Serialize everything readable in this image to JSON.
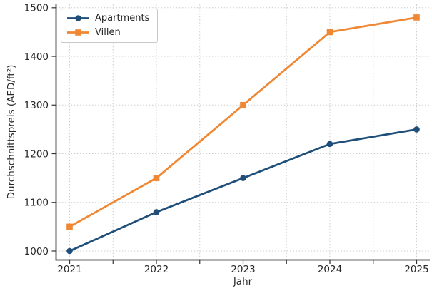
{
  "figure": {
    "background": "#ffffff"
  },
  "chart_data": {
    "type": "line",
    "x": [
      2021,
      2022,
      2023,
      2024,
      2025
    ],
    "series": [
      {
        "name": "Apartments",
        "values": [
          1000,
          1080,
          1150,
          1220,
          1250
        ],
        "color": "#1f4e79",
        "marker": "circle"
      },
      {
        "name": "Villen",
        "values": [
          1050,
          1150,
          1300,
          1450,
          1480
        ],
        "color": "#ef8733",
        "marker": "square"
      }
    ],
    "title": "",
    "xlabel": "Jahr",
    "ylabel": "Durchschnittspreis (AED/ft²)",
    "xticks": [
      2021,
      2022,
      2023,
      2024,
      2025
    ],
    "yticks": [
      1000,
      1100,
      1200,
      1300,
      1400,
      1500
    ],
    "ylim": [
      982,
      1510
    ],
    "xlim": [
      2020.85,
      2025.15
    ],
    "grid": true,
    "grid_style": "dotted",
    "minor_x_gridlines_per_year": 2,
    "legend_position": "upper-left",
    "colors": {
      "grid": "#cccccc",
      "axis": "#333333",
      "tick_labels": "#262626",
      "legend_border": "#c9c9c9",
      "plot_background": "#ffffff"
    }
  }
}
